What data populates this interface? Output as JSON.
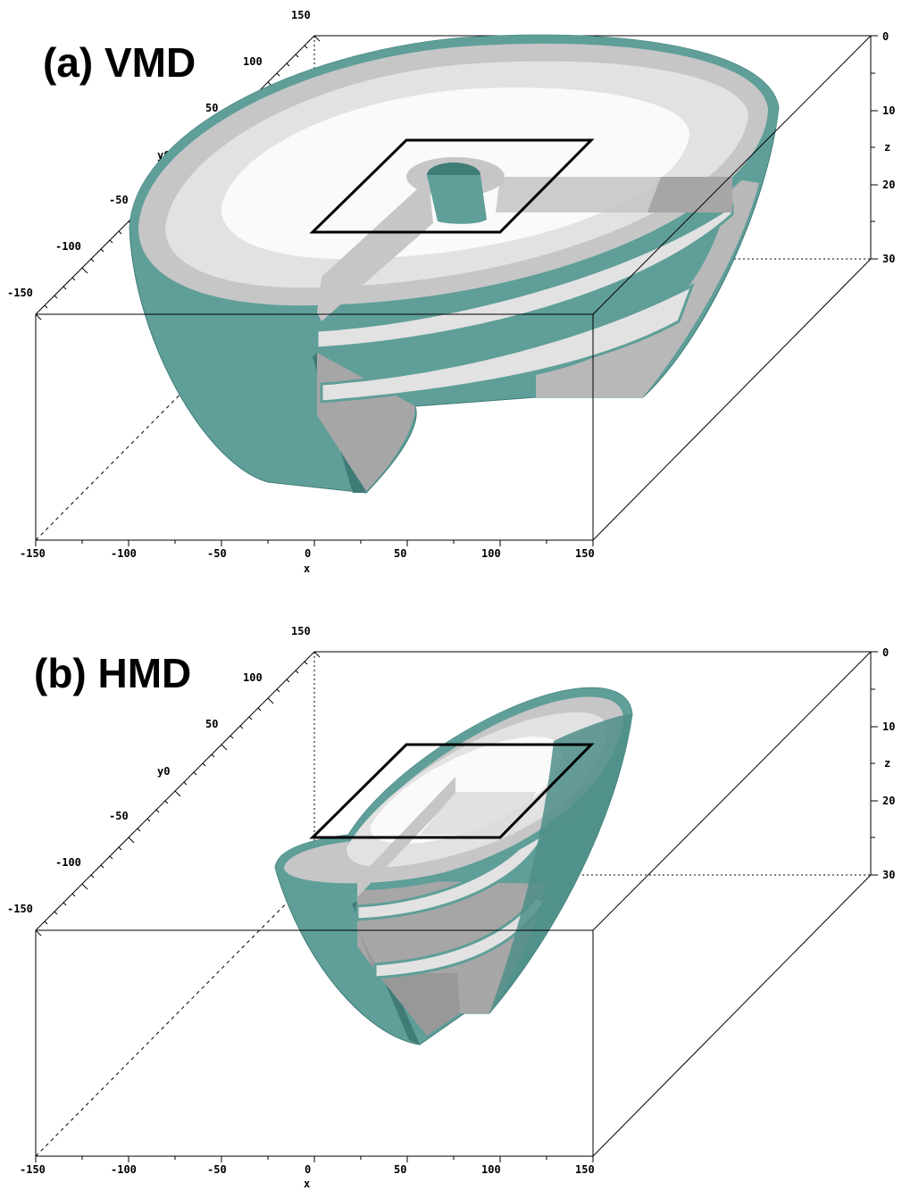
{
  "panels": [
    {
      "id": "a",
      "title": "(a) VMD",
      "x_ticks": [
        "-150",
        "-100",
        "-50",
        "0",
        "50",
        "100",
        "150"
      ],
      "x_label": "x",
      "y_ticks": [
        "-150",
        "-100",
        "-50",
        "y0",
        "50",
        "100",
        "150"
      ],
      "z_ticks": [
        "0",
        "10",
        "z",
        "20",
        "30"
      ]
    },
    {
      "id": "b",
      "title": "(b) HMD",
      "x_ticks": [
        "-150",
        "-100",
        "-50",
        "0",
        "50",
        "100",
        "150"
      ],
      "x_label": "x",
      "y_ticks": [
        "-150",
        "-100",
        "-50",
        "y0",
        "50",
        "100",
        "150"
      ],
      "z_ticks": [
        "0",
        "10",
        "z",
        "20",
        "30"
      ]
    }
  ],
  "colors": {
    "teal": "#5f9e99",
    "teal_dark": "#3f7c78",
    "gray_dark": "#a6a6a6",
    "gray_mid": "#c6c6c6",
    "gray_light": "#e2e2e2",
    "white_core": "#fafafa",
    "frame": "#000000"
  }
}
